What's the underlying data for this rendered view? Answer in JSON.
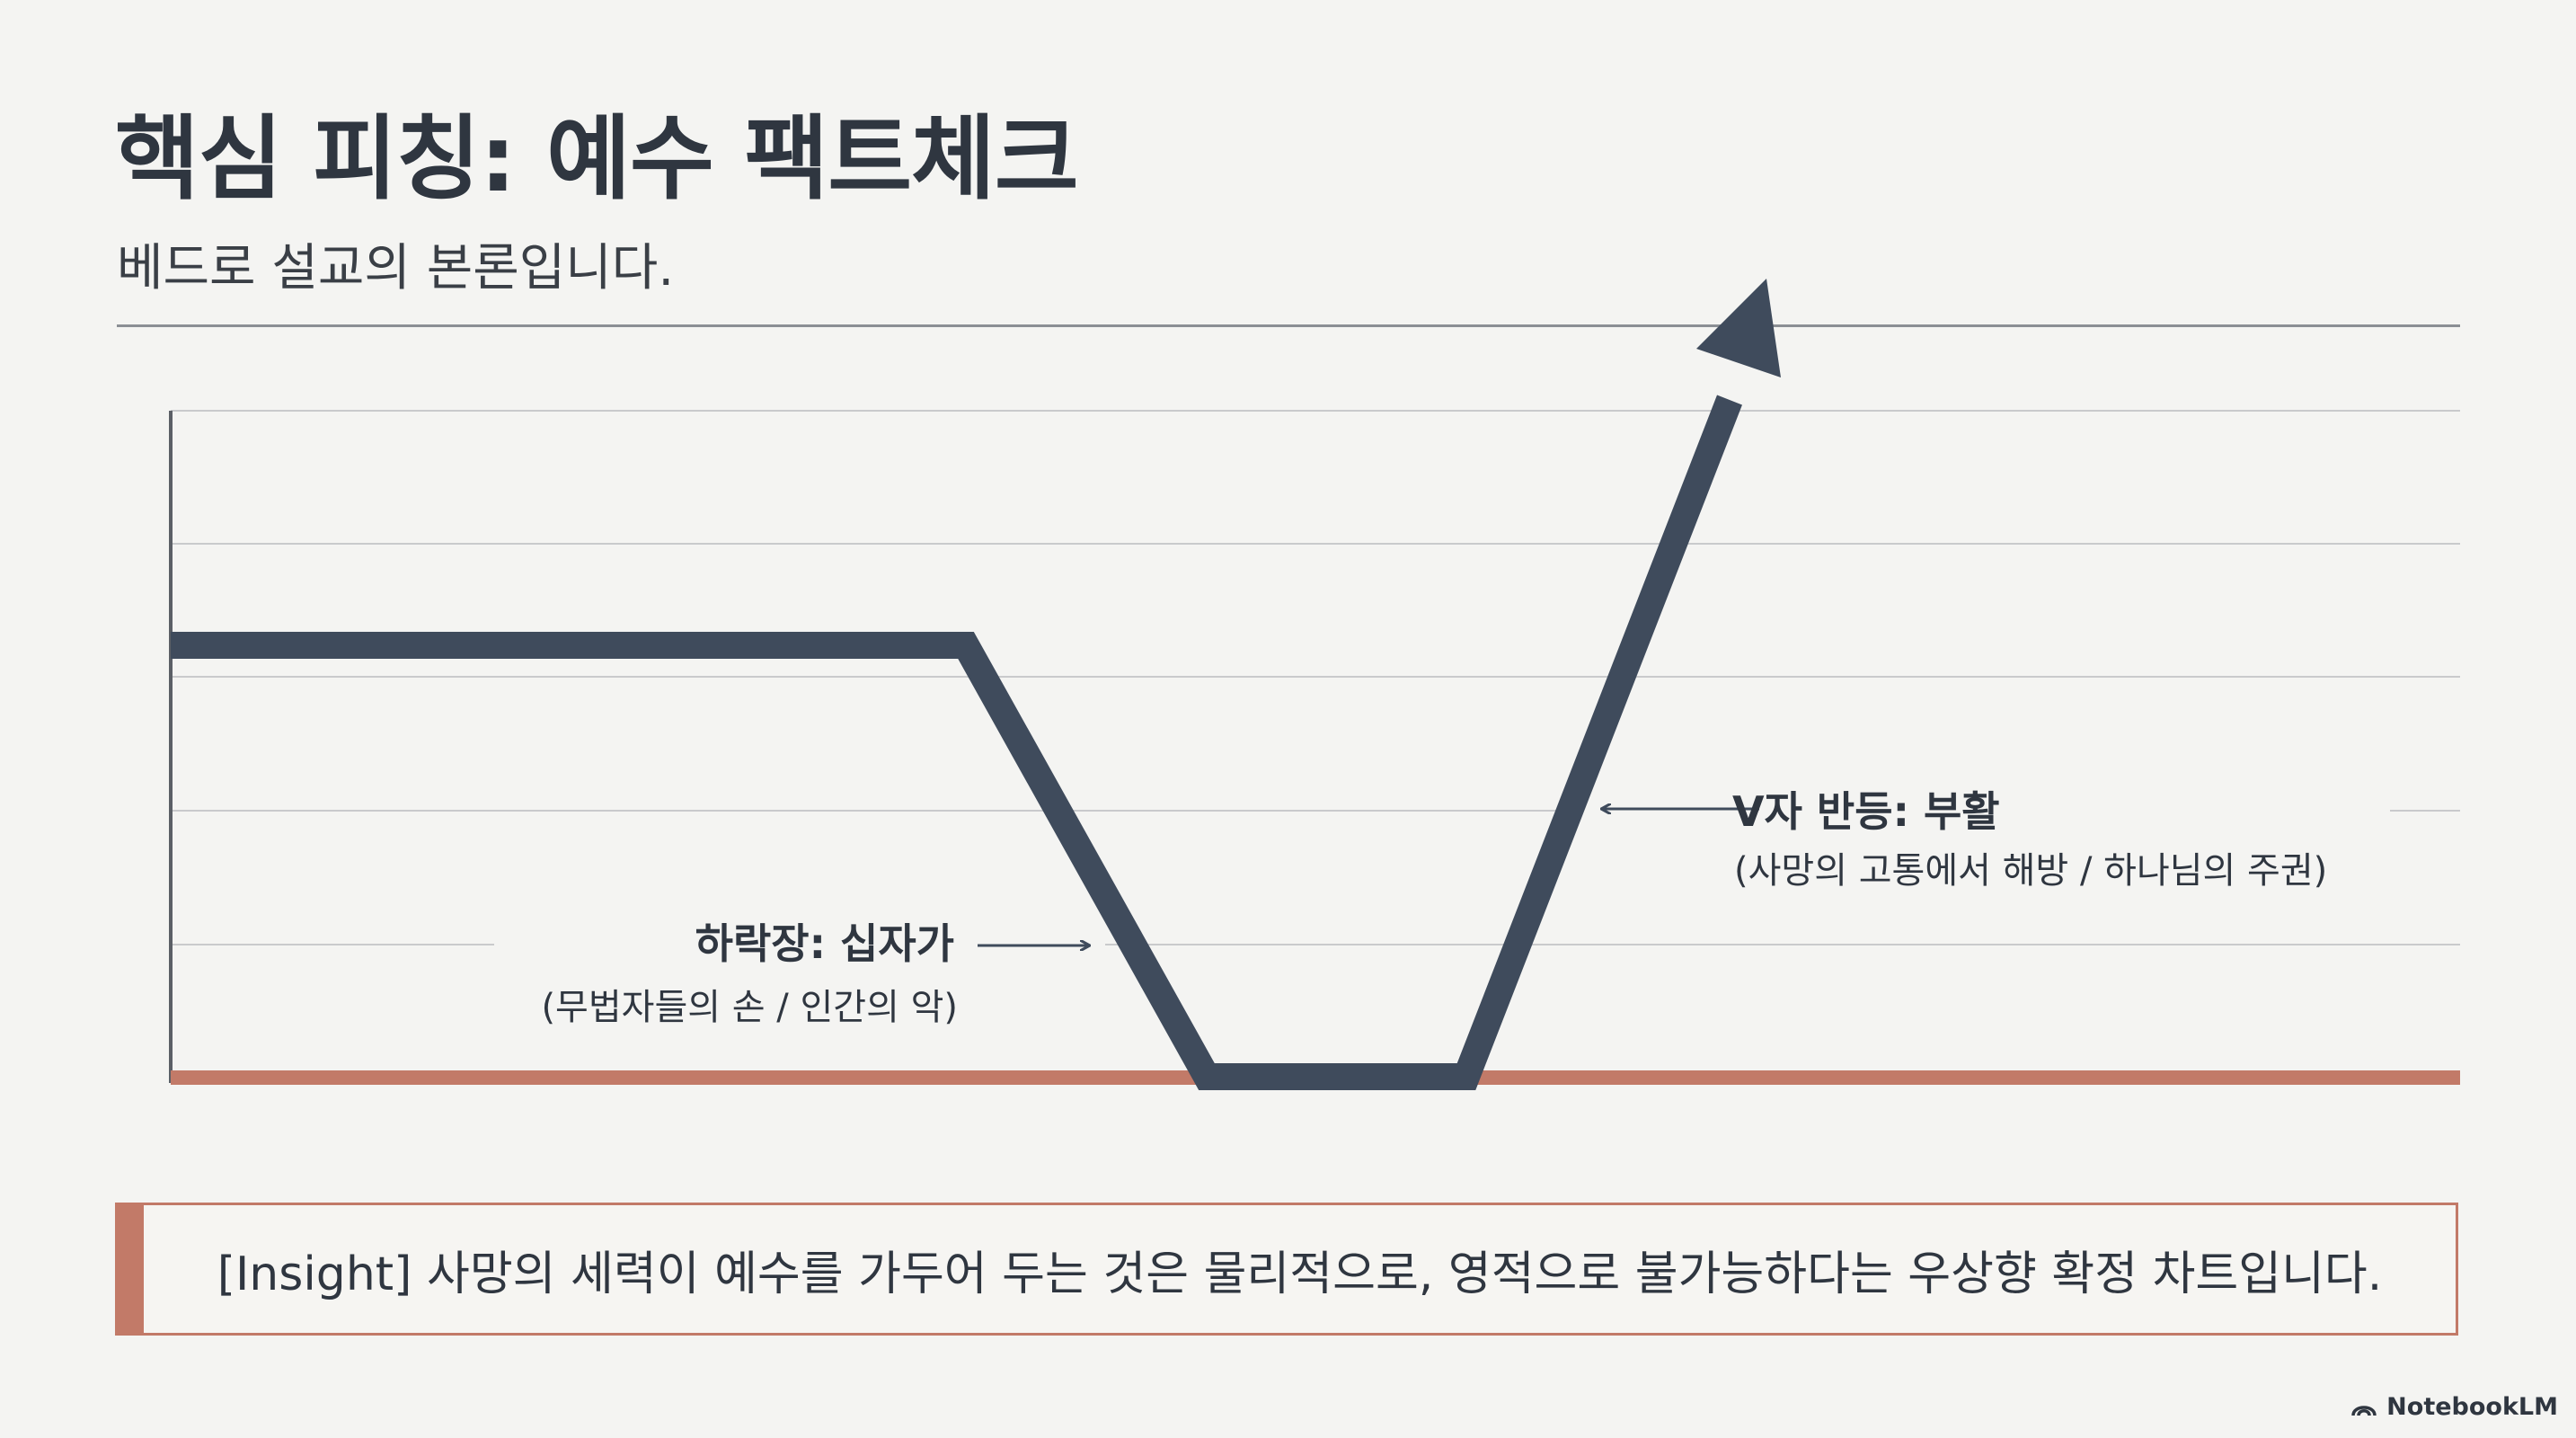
{
  "slide": {
    "title": "핵심 피칭: 예수 팩트체크",
    "subtitle": "베드로 설교의 본론입니다."
  },
  "diagram": {
    "annotations": {
      "drop": {
        "label": "하락장: 십자가",
        "sublabel": "(무법자들의 손 / 인간의 악)"
      },
      "rebound": {
        "label": "V자 반등: 부활",
        "sublabel": "(사망의 고통에서 해방 / 하나님의 주권)"
      }
    },
    "colors": {
      "trend_line": "#3f4b5c",
      "baseline": "#c27a68",
      "grid": "#c9cacc",
      "axis": "#5b5f66"
    }
  },
  "insight": {
    "text": "[Insight] 사망의 세력이 예수를 가두어 두는 것은 물리적으로, 영적으로 불가능하다는 우상향 확정 차트입니다."
  },
  "branding": {
    "logo_text": "NotebookLM",
    "logo_icon": "notebooklm-icon"
  }
}
